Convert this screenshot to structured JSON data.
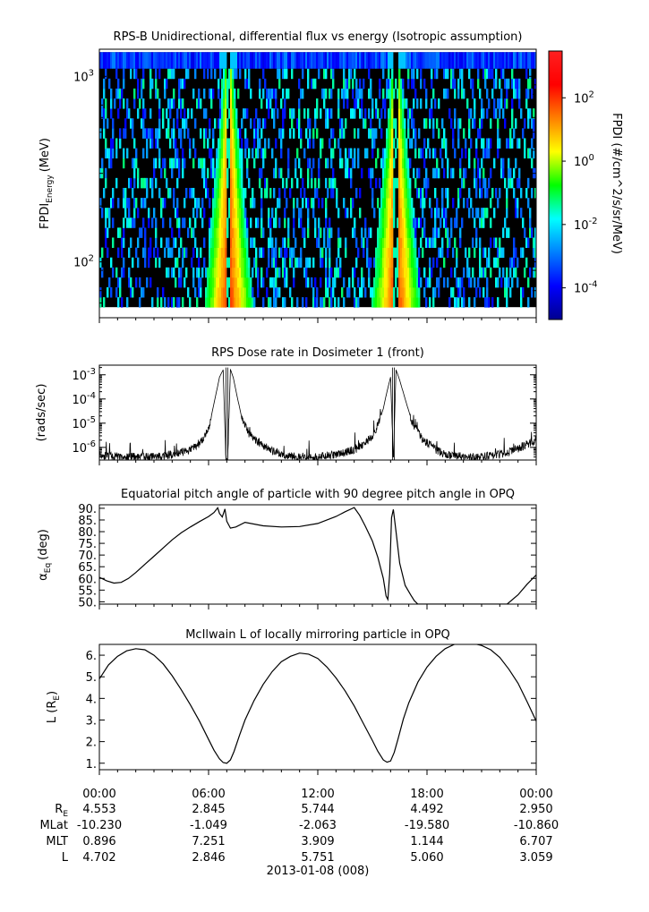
{
  "chart_data": [
    {
      "type": "heatmap",
      "title": "RPS-B  Unidirectional, differential flux vs energy (Isotropic assumption)",
      "ylabel": "FPDI",
      "ylabel_sub": "Energy",
      "ylabel_unit": "(MeV)",
      "y_scale": "log",
      "ylim": [
        50,
        1400
      ],
      "yticks": [
        {
          "value": 100,
          "base": "10",
          "exp": "2"
        },
        {
          "value": 1000,
          "base": "10",
          "exp": "3"
        }
      ],
      "xlim_hours": [
        0,
        24
      ],
      "colorbar": {
        "label": "FPDI (#/cm^2/s/sr/MeV)",
        "scale": "log",
        "range": [
          1e-05,
          3000
        ],
        "ticks": [
          {
            "base": "10",
            "exp": "-4"
          },
          {
            "base": "10",
            "exp": "-2"
          },
          {
            "base": "10",
            "exp": "0"
          },
          {
            "base": "10",
            "exp": "2"
          }
        ]
      },
      "flux_peaks_hours": [
        7.1,
        16.3
      ],
      "colormap": "rainbow"
    },
    {
      "type": "line",
      "title": "RPS  Dose rate in Dosimeter 1 (front)",
      "ylabel": "(rads/sec)",
      "y_scale": "log",
      "ylim": [
        3e-07,
        0.0025
      ],
      "yticks": [
        {
          "base": "10",
          "exp": "-6"
        },
        {
          "base": "10",
          "exp": "-5"
        },
        {
          "base": "10",
          "exp": "-4"
        },
        {
          "base": "10",
          "exp": "-3"
        }
      ],
      "series": [
        {
          "x_hours": [
            0,
            1,
            2,
            3,
            4,
            5,
            5.5,
            6.0,
            6.2,
            6.4,
            6.6,
            6.8,
            6.95,
            7.05,
            7.2,
            7.35,
            7.55,
            7.8,
            8.2,
            8.8,
            9.5,
            10,
            11,
            12,
            13,
            14,
            14.5,
            15.0,
            15.3,
            15.6,
            15.8,
            16.0,
            16.15,
            16.3,
            16.5,
            16.8,
            17.2,
            17.8,
            18.5,
            19,
            20,
            21,
            22,
            23,
            24
          ],
          "y": [
            5e-07,
            4e-07,
            4e-07,
            4e-07,
            5e-07,
            8e-07,
            1.5e-06,
            5e-06,
            3e-05,
            0.00015,
            0.0008,
            0.0016,
            3e-07,
            3e-07,
            0.0017,
            0.0008,
            0.00015,
            2e-05,
            4e-06,
            1.5e-06,
            7e-07,
            5e-07,
            4e-07,
            4e-07,
            5e-07,
            8e-07,
            1.3e-06,
            3e-06,
            8e-06,
            4e-05,
            0.0002,
            0.0008,
            3e-07,
            0.0016,
            0.0006,
            0.0001,
            1e-05,
            2e-06,
            8e-07,
            5e-07,
            4e-07,
            4e-07,
            5e-07,
            9e-07,
            2e-06
          ]
        }
      ]
    },
    {
      "type": "line",
      "title": "Equatorial pitch angle of particle with 90 degree pitch angle in OPQ",
      "ylabel": "α",
      "ylabel_sub": "Eq",
      "ylabel_unit": "(deg)",
      "ylim": [
        49,
        91.5
      ],
      "yticks": [
        50,
        55,
        60,
        65,
        70,
        75,
        80,
        85,
        90
      ],
      "series": [
        {
          "x_hours": [
            0,
            0.4,
            0.8,
            1.2,
            1.6,
            2.0,
            2.5,
            3.0,
            3.5,
            4.0,
            4.5,
            5.0,
            5.5,
            6.0,
            6.3,
            6.5,
            6.6,
            6.75,
            6.9,
            7.0,
            7.2,
            7.5,
            8.0,
            9.0,
            10.0,
            11.0,
            12.0,
            13.0,
            13.5,
            14.0,
            14.3,
            14.6,
            15.0,
            15.3,
            15.6,
            15.75,
            15.85,
            15.95,
            16.05,
            16.15,
            16.3,
            16.5,
            16.8,
            17.1,
            17.3,
            17.5,
            22.4,
            23.0,
            23.5,
            24.0
          ],
          "y": [
            60.5,
            59.0,
            58.0,
            58.3,
            60.0,
            62.5,
            66.0,
            69.5,
            73.0,
            76.5,
            79.5,
            82.0,
            84.3,
            86.5,
            88.2,
            90.2,
            87.8,
            86.3,
            89.7,
            84.5,
            81.5,
            82.0,
            84.0,
            82.5,
            82.0,
            82.2,
            83.5,
            86.5,
            88.5,
            90.3,
            87.0,
            82.5,
            76.0,
            69.0,
            60.0,
            52.5,
            51.0,
            62.0,
            86.0,
            89.5,
            80.0,
            66.5,
            57.0,
            53.0,
            50.5,
            49.0,
            49.0,
            53.0,
            57.5,
            61.5
          ]
        }
      ]
    },
    {
      "type": "line",
      "title": "McIlwain L of locally mirroring particle in OPQ",
      "ylabel": "L (R",
      "ylabel_sub": "E",
      "ylabel_unit": ")",
      "ylim": [
        0.7,
        6.5
      ],
      "yticks": [
        1,
        2,
        3,
        4,
        5,
        6
      ],
      "series": [
        {
          "x_hours": [
            0,
            0.5,
            1.0,
            1.5,
            2.0,
            2.5,
            3.0,
            3.5,
            4.0,
            4.5,
            5.0,
            5.5,
            6.0,
            6.3,
            6.6,
            6.8,
            7.0,
            7.2,
            7.4,
            7.7,
            8.0,
            8.5,
            9.0,
            9.5,
            10.0,
            10.5,
            11.0,
            11.5,
            12.0,
            12.5,
            13.0,
            13.5,
            14.0,
            14.5,
            15.0,
            15.3,
            15.6,
            15.8,
            16.0,
            16.2,
            16.4,
            16.7,
            17.0,
            17.5,
            18.0,
            18.5,
            19.0,
            19.5,
            20.0,
            20.5,
            21.0,
            21.5,
            22.0,
            22.5,
            23.0,
            23.5,
            24.0
          ],
          "y": [
            4.9,
            5.55,
            5.95,
            6.2,
            6.3,
            6.25,
            6.0,
            5.6,
            5.05,
            4.4,
            3.7,
            2.95,
            2.1,
            1.6,
            1.2,
            1.03,
            1.0,
            1.15,
            1.55,
            2.3,
            3.0,
            3.9,
            4.65,
            5.25,
            5.7,
            5.95,
            6.1,
            6.05,
            5.85,
            5.45,
            4.95,
            4.35,
            3.65,
            2.85,
            2.05,
            1.55,
            1.15,
            1.05,
            1.1,
            1.5,
            2.1,
            3.05,
            3.8,
            4.75,
            5.45,
            5.95,
            6.3,
            6.5,
            6.6,
            6.55,
            6.45,
            6.25,
            5.9,
            5.35,
            4.7,
            3.85,
            2.95
          ]
        }
      ]
    }
  ],
  "xaxis": {
    "ticks": [
      "00:00",
      "06:00",
      "12:00",
      "18:00",
      "00:00"
    ],
    "rows": [
      {
        "label": "R",
        "label_sub": "E",
        "values": [
          "4.553",
          "2.845",
          "5.744",
          "4.492",
          "2.950"
        ]
      },
      {
        "label": "MLat",
        "label_sub": "",
        "values": [
          "-10.230",
          "-1.049",
          "-2.063",
          "-19.580",
          "-10.860"
        ]
      },
      {
        "label": "MLT",
        "label_sub": "",
        "values": [
          "0.896",
          "7.251",
          "3.909",
          "1.144",
          "6.707"
        ]
      },
      {
        "label": "L",
        "label_sub": "",
        "values": [
          "4.702",
          "2.846",
          "5.751",
          "5.060",
          "3.059"
        ]
      }
    ],
    "date": "2013-01-08 (008)"
  },
  "colors": {
    "line": "#000000",
    "background": "#000000"
  }
}
